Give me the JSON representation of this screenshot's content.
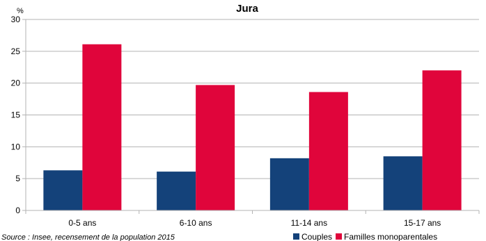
{
  "chart_data": {
    "type": "bar",
    "title": "Jura",
    "ylabel": "%",
    "xlabel": "",
    "ylim": [
      0,
      30
    ],
    "yticks": [
      0,
      5,
      10,
      15,
      20,
      25,
      30
    ],
    "grid": true,
    "legend": "bottom-right",
    "categories": [
      "0-5 ans",
      "6-10 ans",
      "11-14 ans",
      "15-17 ans"
    ],
    "series": [
      {
        "name": "Couples",
        "color": "#14427a",
        "values": [
          6.3,
          6.1,
          8.2,
          8.5
        ]
      },
      {
        "name": "Familles monoparentales",
        "color": "#e0053b",
        "values": [
          26.1,
          19.7,
          18.6,
          22.0
        ]
      }
    ],
    "source": "Source : Insee, recensement de la population 2015"
  }
}
